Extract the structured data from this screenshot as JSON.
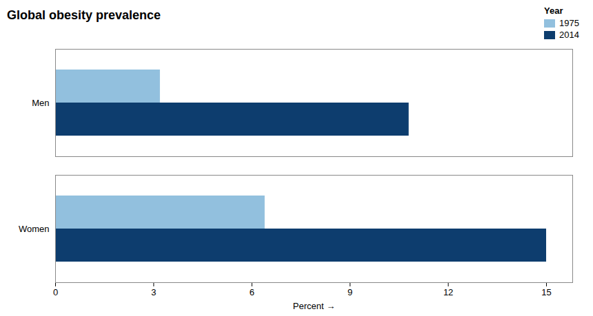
{
  "chart_data": {
    "type": "bar",
    "orientation": "horizontal",
    "title": "Global obesity prevalence",
    "categories": [
      "Women",
      "Men"
    ],
    "series": [
      {
        "name": "1975",
        "color": "#92c0de",
        "values": [
          6.4,
          3.2
        ]
      },
      {
        "name": "2014",
        "color": "#0d3d6e",
        "values": [
          15.0,
          10.8
        ]
      }
    ],
    "xlabel": "Percent",
    "xlim": [
      0,
      15.8
    ],
    "xticks": [
      0,
      3,
      6,
      9,
      12,
      15
    ],
    "legend_title": "Year",
    "legend": "upper right",
    "grid": false
  }
}
